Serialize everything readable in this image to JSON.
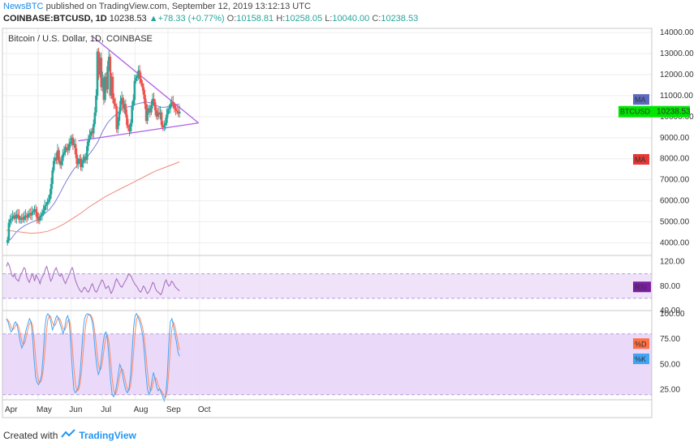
{
  "header": {
    "publisher": "NewsBTC",
    "published_text": "published on TradingView.com, September 12, 2019 13:12:13 UTC",
    "symbol": "COINBASE:BTCUSD, 1D",
    "last": "10238.53",
    "change": "+78.33 (+0.77%)",
    "o_label": "O:",
    "o": "10158.81",
    "h_label": "H:",
    "h": "10258.05",
    "l_label": "L:",
    "l": "10040.00",
    "c_label": "C:",
    "c": "10238.53"
  },
  "chart_title": "Bitcoin / U.S. Dollar, 1D, COINBASE",
  "footer": {
    "created_with": "Created with",
    "brand": "TradingView"
  },
  "tags": {
    "ma_blue": "MA",
    "btcusd": "BTCUSD",
    "price": "10238.53",
    "ma_red": "MA",
    "rsi": "RSI",
    "d": "%D",
    "k": "%K"
  },
  "colors": {
    "up": "#26a69a",
    "down": "#ef5350",
    "ma_fast": "#7b7fd6",
    "ma_slow": "#ef8a80",
    "triangle": "#b05fe6",
    "rsi": "#a569bd",
    "band": "#e8d5f7",
    "stoch_k": "#42a5f5",
    "stoch_d": "#ff8a65",
    "price_tag": "#00e600"
  },
  "chart_data": {
    "type": "candlestick",
    "x_ticks": [
      "Apr",
      "May",
      "Jun",
      "Jul",
      "Aug",
      "Sep",
      "Oct"
    ],
    "price_ticks": [
      "14000.00",
      "13000.00",
      "12000.00",
      "11000.00",
      "10000.00",
      "9000.00",
      "8000.00",
      "7000.00",
      "6000.00",
      "5000.00",
      "4000.00"
    ],
    "price_ylim": [
      3400,
      14200
    ],
    "rsi_ticks": [
      "120.00",
      "80.00",
      "40.00"
    ],
    "rsi_ylim": [
      40,
      130
    ],
    "stoch_ticks": [
      "100.00",
      "75.00",
      "50.00",
      "25.00"
    ],
    "stoch_ylim": [
      15,
      103
    ],
    "closes": [
      4150,
      4950,
      5100,
      5150,
      5250,
      5300,
      5150,
      5350,
      5300,
      5100,
      5150,
      5200,
      5100,
      5250,
      5300,
      5200,
      5350,
      5400,
      5300,
      5450,
      5500,
      5600,
      5450,
      5150,
      5050,
      5250,
      5300,
      5400,
      5550,
      5750,
      5800,
      5950,
      6050,
      6300,
      6800,
      7450,
      7900,
      8050,
      7950,
      8400,
      7900,
      7700,
      7900,
      8200,
      8300,
      8550,
      8500,
      8400,
      8700,
      8800,
      9000,
      8650,
      8700,
      8200,
      7750,
      7900,
      8000,
      7600,
      7800,
      7900,
      8100,
      7950,
      8600,
      8900,
      9100,
      9300,
      9200,
      9650,
      10200,
      11000,
      13100,
      12000,
      12800,
      11400,
      11850,
      10800,
      11900,
      11300,
      12400,
      12850,
      11000,
      11900,
      10850,
      10600,
      10500,
      9400,
      9800,
      10250,
      10750,
      10900,
      10400,
      10600,
      10100,
      9600,
      9500,
      9300,
      9700,
      10500,
      10800,
      11700,
      11850,
      11950,
      12200,
      11800,
      11600,
      11400,
      11050,
      10600,
      9800,
      10300,
      10400,
      10200,
      10550,
      10850,
      10700,
      10300,
      10000,
      10200,
      10100,
      10200,
      9600,
      9500,
      9600,
      9700,
      10100,
      10350,
      10400,
      10600,
      10700,
      10550,
      10400,
      10300,
      10250,
      10150,
      10240
    ],
    "candle_start_date": "2019-04-02",
    "ma_fast": [
      4000,
      4200,
      4500,
      4700,
      4850,
      4950,
      5050,
      5200,
      5400,
      5600,
      5900,
      6300,
      6750,
      7150,
      7500,
      7750,
      7950,
      8150,
      8450,
      8800,
      9300,
      9700,
      9950,
      10150,
      10350,
      10450,
      10500,
      10600,
      10650,
      10700,
      10650,
      10550,
      10450,
      10450,
      10500,
      10550,
      10600
    ],
    "ma_slow": [
      4600,
      4550,
      4500,
      4450,
      4480,
      4550,
      4700,
      4900,
      5150,
      5400,
      5700,
      5950,
      6200,
      6400,
      6600,
      6800,
      7000,
      7200,
      7400,
      7550,
      7700,
      7850
    ],
    "triangle_apex": 9700,
    "rsi_values": [
      112,
      118,
      114,
      106,
      98,
      95,
      100,
      92,
      90,
      88,
      95,
      100,
      104,
      110,
      108,
      96,
      90,
      86,
      92,
      100,
      96,
      88,
      98,
      94,
      90,
      84,
      92,
      96,
      100,
      108,
      112,
      104,
      96,
      88,
      92,
      100,
      106,
      110,
      104,
      98,
      96,
      100,
      94,
      88,
      84,
      90,
      94,
      100,
      106,
      110,
      104,
      92,
      86,
      80,
      76,
      72,
      70,
      74,
      78,
      76,
      72,
      70,
      74,
      80,
      84,
      78,
      72,
      70,
      74,
      80,
      84,
      90,
      88,
      82,
      76,
      78,
      80,
      74,
      68,
      72,
      78,
      86,
      92,
      88,
      84,
      80,
      78,
      82,
      86,
      90,
      94,
      100,
      98,
      96,
      90,
      86,
      82,
      80,
      76,
      72,
      70,
      74,
      80,
      78,
      72,
      68,
      70,
      74,
      80,
      86,
      84,
      76,
      72,
      70,
      68,
      66,
      70,
      78,
      86,
      90,
      84,
      80,
      82,
      88,
      86,
      82,
      78,
      76,
      74,
      72
    ],
    "stoch_k": [
      95,
      92,
      86,
      82,
      84,
      90,
      92,
      88,
      80,
      72,
      66,
      70,
      78,
      85,
      90,
      95,
      92,
      78,
      55,
      38,
      32,
      30,
      34,
      40,
      60,
      85,
      97,
      100,
      98,
      92,
      84,
      88,
      95,
      98,
      95,
      90,
      85,
      80,
      86,
      95,
      98,
      90,
      70,
      45,
      25,
      22,
      24,
      28,
      40,
      60,
      82,
      95,
      99,
      100,
      99,
      97,
      92,
      80,
      62,
      48,
      40,
      44,
      56,
      70,
      80,
      82,
      74,
      55,
      34,
      20,
      18,
      22,
      30,
      40,
      50,
      46,
      38,
      30,
      24,
      22,
      26,
      38,
      62,
      86,
      98,
      100,
      96,
      92,
      86,
      78,
      62,
      42,
      26,
      20,
      24,
      34,
      42,
      36,
      28,
      24,
      26,
      22,
      18,
      14,
      20,
      38,
      70,
      92,
      95,
      88,
      80,
      72,
      62,
      58
    ]
  }
}
